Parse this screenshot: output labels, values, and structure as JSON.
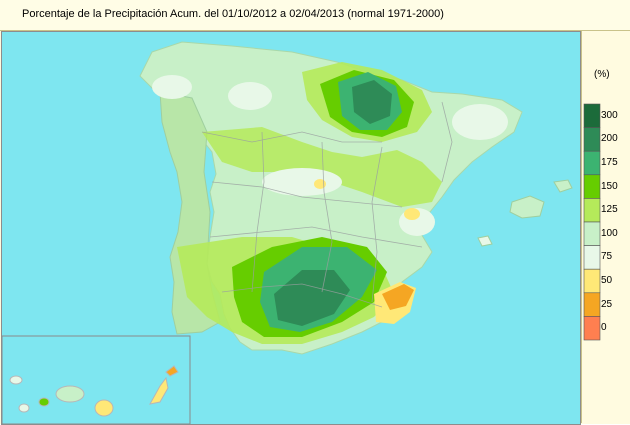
{
  "title": "Porcentaje de la Precipitación Acum. del 01/10/2012 a  02/04/2013  (normal 1971-2000)",
  "legend": {
    "unit": "(%)",
    "classes": [
      {
        "label": "300",
        "color": "#1c6b3a"
      },
      {
        "label": "200",
        "color": "#2e8b57"
      },
      {
        "label": "175",
        "color": "#3cb371"
      },
      {
        "label": "150",
        "color": "#66cd00"
      },
      {
        "label": "125",
        "color": "#b5ea5a"
      },
      {
        "label": "100",
        "color": "#c8f0c8"
      },
      {
        "label": "75",
        "color": "#e8f8e8"
      },
      {
        "label": "50",
        "color": "#ffe877"
      },
      {
        "label": "25",
        "color": "#f5a623"
      },
      {
        "label": "0",
        "color": "#ff7f50"
      }
    ]
  },
  "colors": {
    "sea": "#7ee6f0",
    "land_base": "#c8f0c8",
    "above_normal": "#b5ea5a",
    "high": "#66cd00",
    "very_high": "#3cb371",
    "extreme": "#2e8b57",
    "dry": "#ffe877",
    "very_dry": "#f5a623"
  }
}
